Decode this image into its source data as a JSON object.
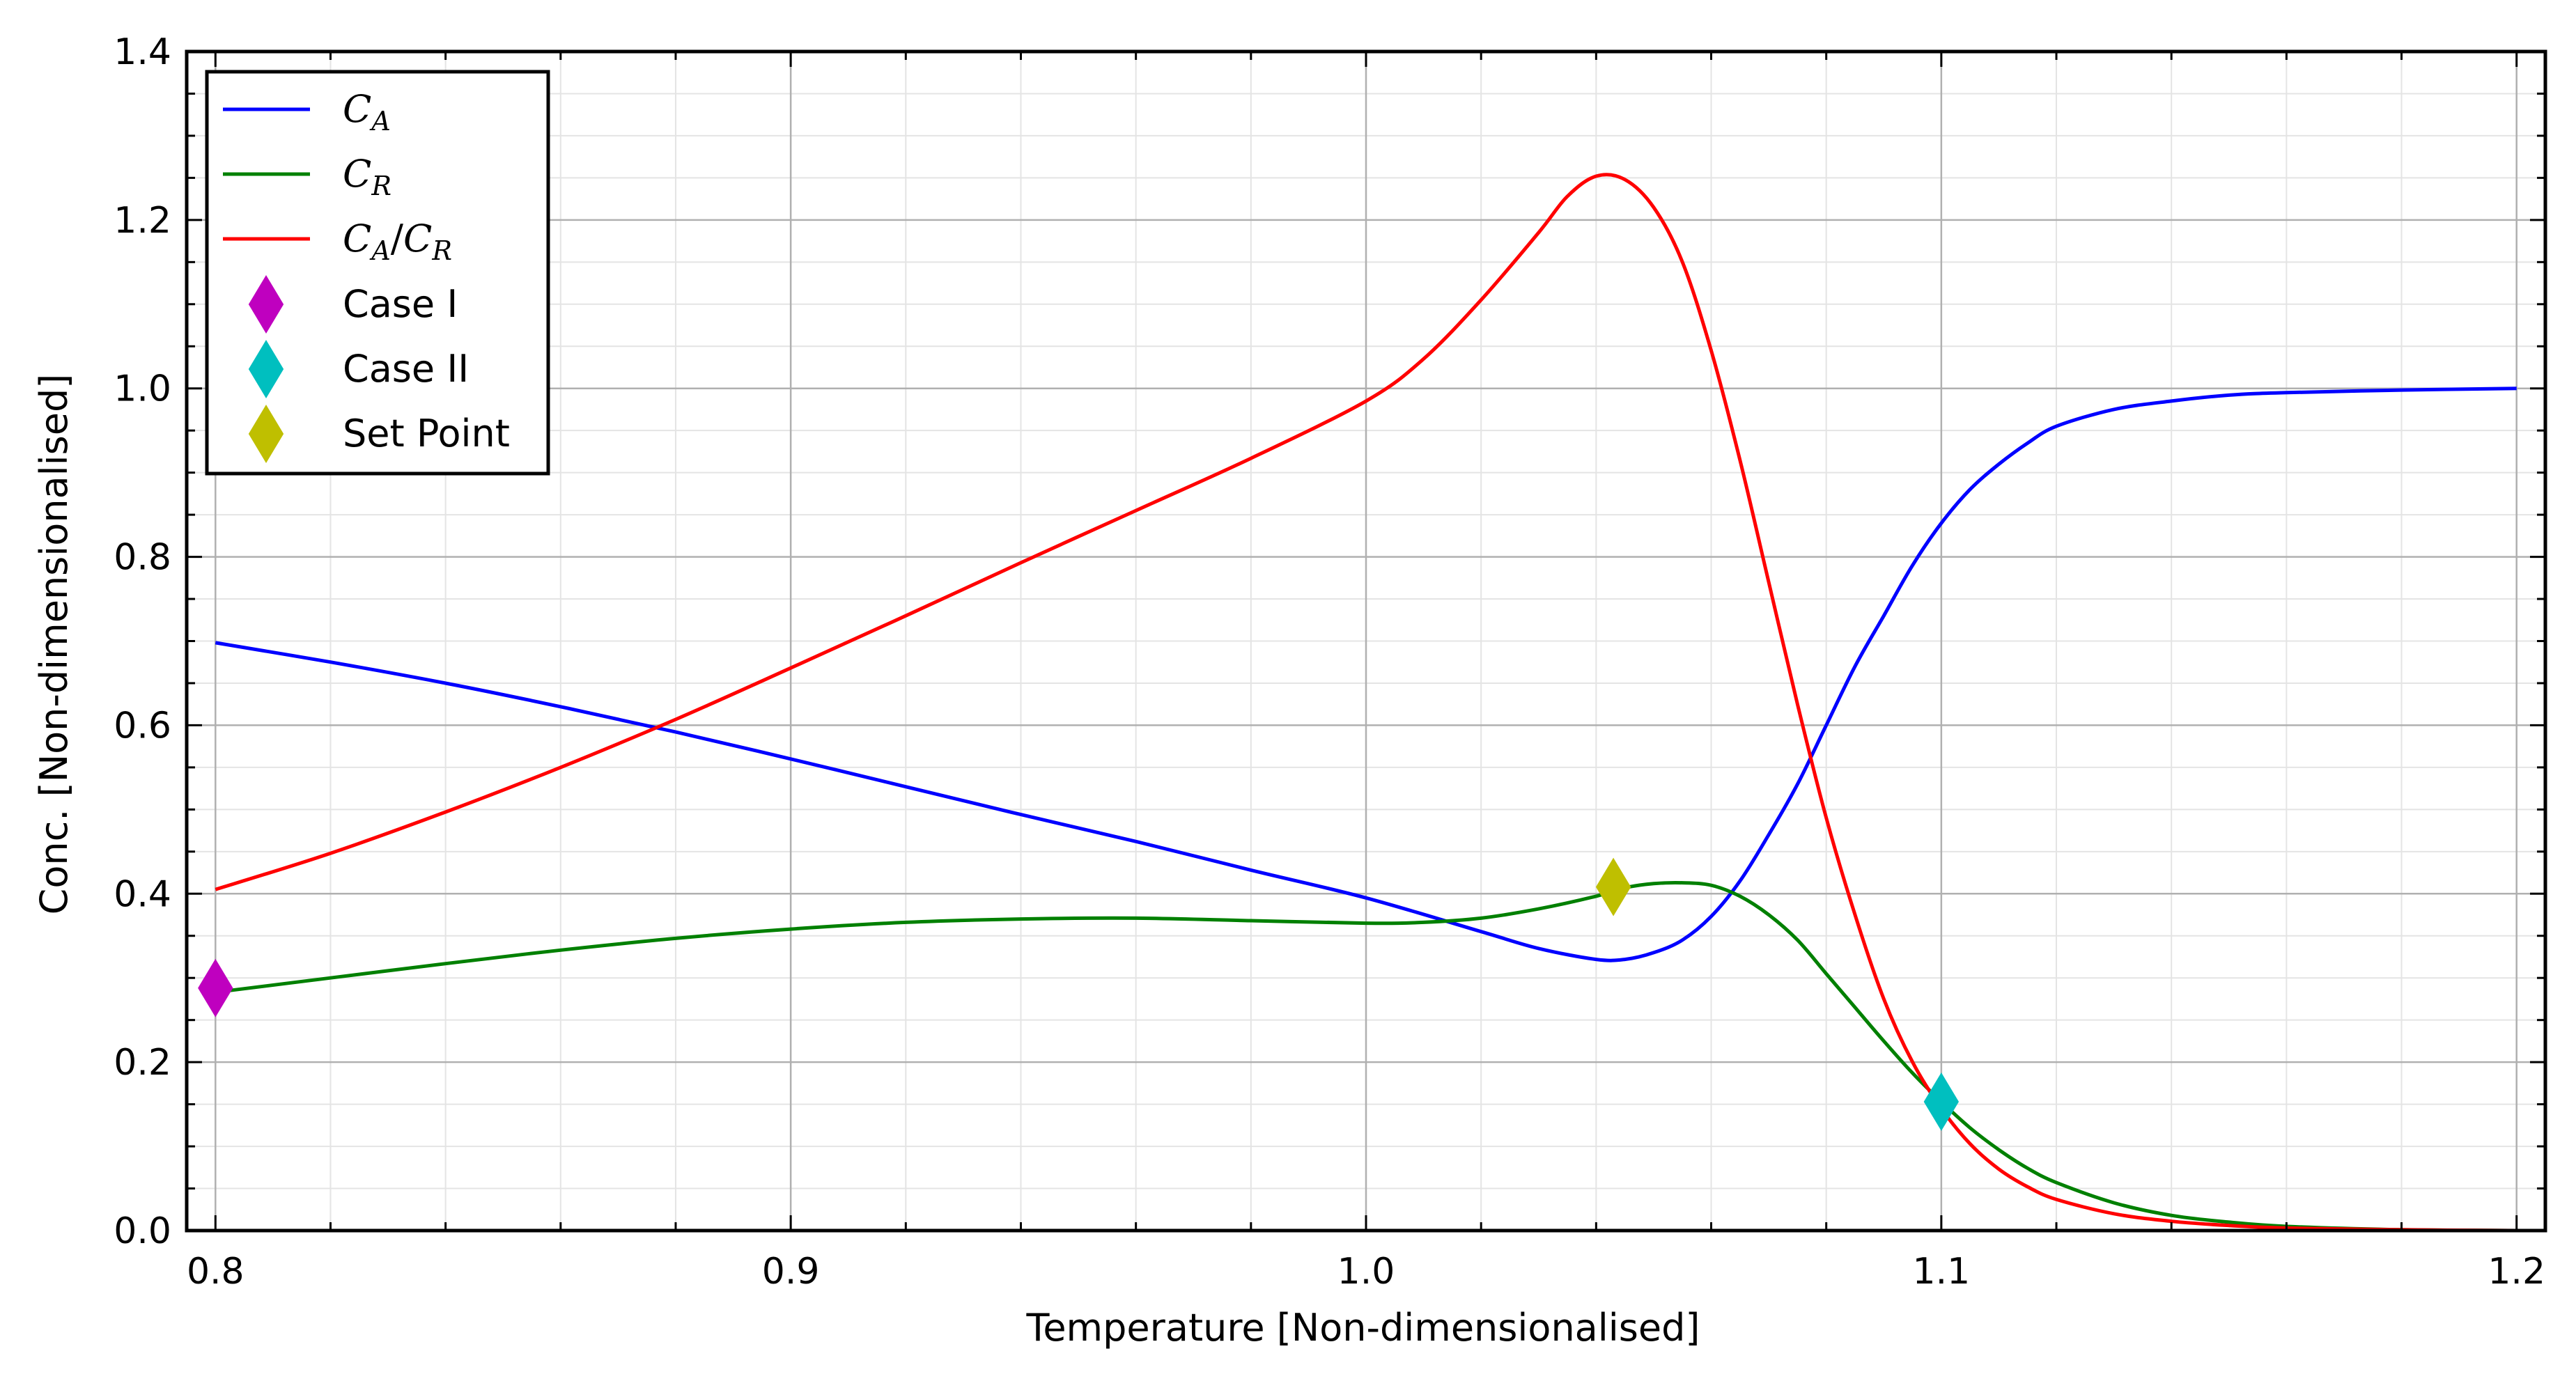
{
  "chart_data": {
    "type": "line",
    "title": "",
    "xlabel": "Temperature [Non-dimensionalised]",
    "ylabel": "Conc. [Non-dimensionalised]",
    "xlim": [
      0.795,
      1.205
    ],
    "ylim": [
      0.0,
      1.4
    ],
    "xticks": [
      0.8,
      0.9,
      1.0,
      1.1,
      1.2
    ],
    "xtick_labels": [
      "0.8",
      "0.9",
      "1.0",
      "1.1",
      "1.2"
    ],
    "yticks": [
      0.0,
      0.2,
      0.4,
      0.6,
      0.8,
      1.0,
      1.2,
      1.4
    ],
    "ytick_labels": [
      "0.0",
      "0.2",
      "0.4",
      "0.6",
      "0.8",
      "1.0",
      "1.2",
      "1.4"
    ],
    "grid": "major and minor",
    "legend_position": "top-left",
    "series": [
      {
        "name": "C_A",
        "legend_main": "C",
        "legend_sub": "A",
        "color": "#0000ff",
        "x": [
          0.8,
          0.82,
          0.84,
          0.86,
          0.88,
          0.9,
          0.92,
          0.94,
          0.96,
          0.98,
          1.0,
          1.02,
          1.03,
          1.04,
          1.045,
          1.05,
          1.055,
          1.06,
          1.065,
          1.07,
          1.075,
          1.08,
          1.085,
          1.09,
          1.095,
          1.1,
          1.105,
          1.11,
          1.115,
          1.12,
          1.13,
          1.14,
          1.15,
          1.16,
          1.18,
          1.2
        ],
        "y": [
          0.698,
          0.675,
          0.65,
          0.622,
          0.592,
          0.56,
          0.527,
          0.494,
          0.462,
          0.428,
          0.395,
          0.355,
          0.335,
          0.322,
          0.322,
          0.33,
          0.345,
          0.373,
          0.415,
          0.47,
          0.53,
          0.6,
          0.67,
          0.73,
          0.79,
          0.84,
          0.88,
          0.91,
          0.935,
          0.955,
          0.975,
          0.985,
          0.992,
          0.995,
          0.998,
          1.0
        ]
      },
      {
        "name": "C_R",
        "legend_main": "C",
        "legend_sub": "R",
        "color": "#008000",
        "x": [
          0.8,
          0.82,
          0.84,
          0.86,
          0.88,
          0.9,
          0.92,
          0.94,
          0.96,
          0.98,
          1.0,
          1.01,
          1.02,
          1.03,
          1.04,
          1.045,
          1.05,
          1.055,
          1.06,
          1.065,
          1.07,
          1.075,
          1.08,
          1.085,
          1.09,
          1.095,
          1.1,
          1.105,
          1.11,
          1.115,
          1.12,
          1.13,
          1.14,
          1.15,
          1.16,
          1.18,
          1.2
        ],
        "y": [
          0.283,
          0.3,
          0.317,
          0.333,
          0.347,
          0.358,
          0.366,
          0.37,
          0.371,
          0.368,
          0.365,
          0.366,
          0.371,
          0.382,
          0.397,
          0.407,
          0.412,
          0.413,
          0.41,
          0.397,
          0.375,
          0.345,
          0.305,
          0.265,
          0.225,
          0.187,
          0.153,
          0.122,
          0.096,
          0.074,
          0.057,
          0.033,
          0.018,
          0.01,
          0.005,
          0.001,
          0.0
        ]
      },
      {
        "name": "C_A/C_R",
        "legend_main": "C",
        "legend_sub": "A",
        "legend_main2": "C",
        "legend_sub2": "R",
        "color": "#ff0000",
        "x": [
          0.8,
          0.82,
          0.84,
          0.86,
          0.88,
          0.9,
          0.92,
          0.94,
          0.96,
          0.98,
          1.0,
          1.01,
          1.02,
          1.03,
          1.035,
          1.04,
          1.045,
          1.05,
          1.055,
          1.06,
          1.065,
          1.07,
          1.075,
          1.08,
          1.085,
          1.09,
          1.095,
          1.1,
          1.105,
          1.11,
          1.115,
          1.12,
          1.13,
          1.14,
          1.15,
          1.16,
          1.18,
          1.2
        ],
        "y": [
          0.405,
          0.448,
          0.497,
          0.55,
          0.607,
          0.668,
          0.73,
          0.793,
          0.855,
          0.917,
          0.985,
          1.035,
          1.105,
          1.185,
          1.228,
          1.252,
          1.248,
          1.215,
          1.15,
          1.045,
          0.915,
          0.77,
          0.625,
          0.49,
          0.375,
          0.275,
          0.2,
          0.145,
          0.103,
          0.073,
          0.052,
          0.037,
          0.02,
          0.011,
          0.006,
          0.003,
          0.001,
          0.0
        ]
      }
    ],
    "markers": [
      {
        "name": "Case I",
        "x": 0.8,
        "y": 0.288,
        "color": "#bf00bf"
      },
      {
        "name": "Case II",
        "x": 1.1,
        "y": 0.153,
        "color": "#00bfbf"
      },
      {
        "name": "Set Point",
        "x": 1.043,
        "y": 0.408,
        "color": "#bfbf00"
      }
    ]
  }
}
